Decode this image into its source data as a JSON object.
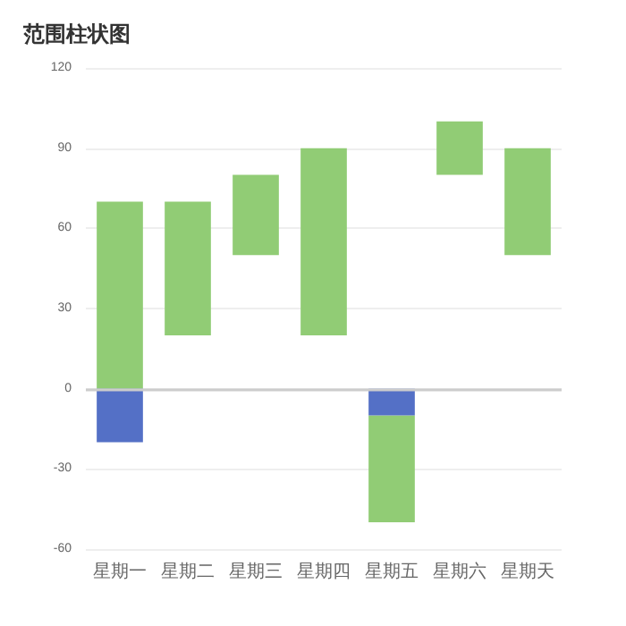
{
  "chart_data": {
    "type": "bar",
    "title": "范围柱状图",
    "categories": [
      "星期一",
      "星期二",
      "星期三",
      "星期四",
      "星期五",
      "星期六",
      "星期天"
    ],
    "series": [
      {
        "color": "#91cc75",
        "base": [
          0,
          20,
          50,
          20,
          -50,
          80,
          50
        ],
        "values": [
          70,
          50,
          30,
          70,
          40,
          20,
          40
        ]
      },
      {
        "color": "#5470c6",
        "base": [
          0,
          null,
          null,
          null,
          0,
          null,
          null
        ],
        "values": [
          -20,
          null,
          null,
          null,
          -10,
          null,
          null
        ]
      }
    ],
    "ylim": [
      -60,
      120
    ],
    "yticks": [
      -60,
      -30,
      0,
      30,
      60,
      90,
      120
    ],
    "grid": "y"
  }
}
